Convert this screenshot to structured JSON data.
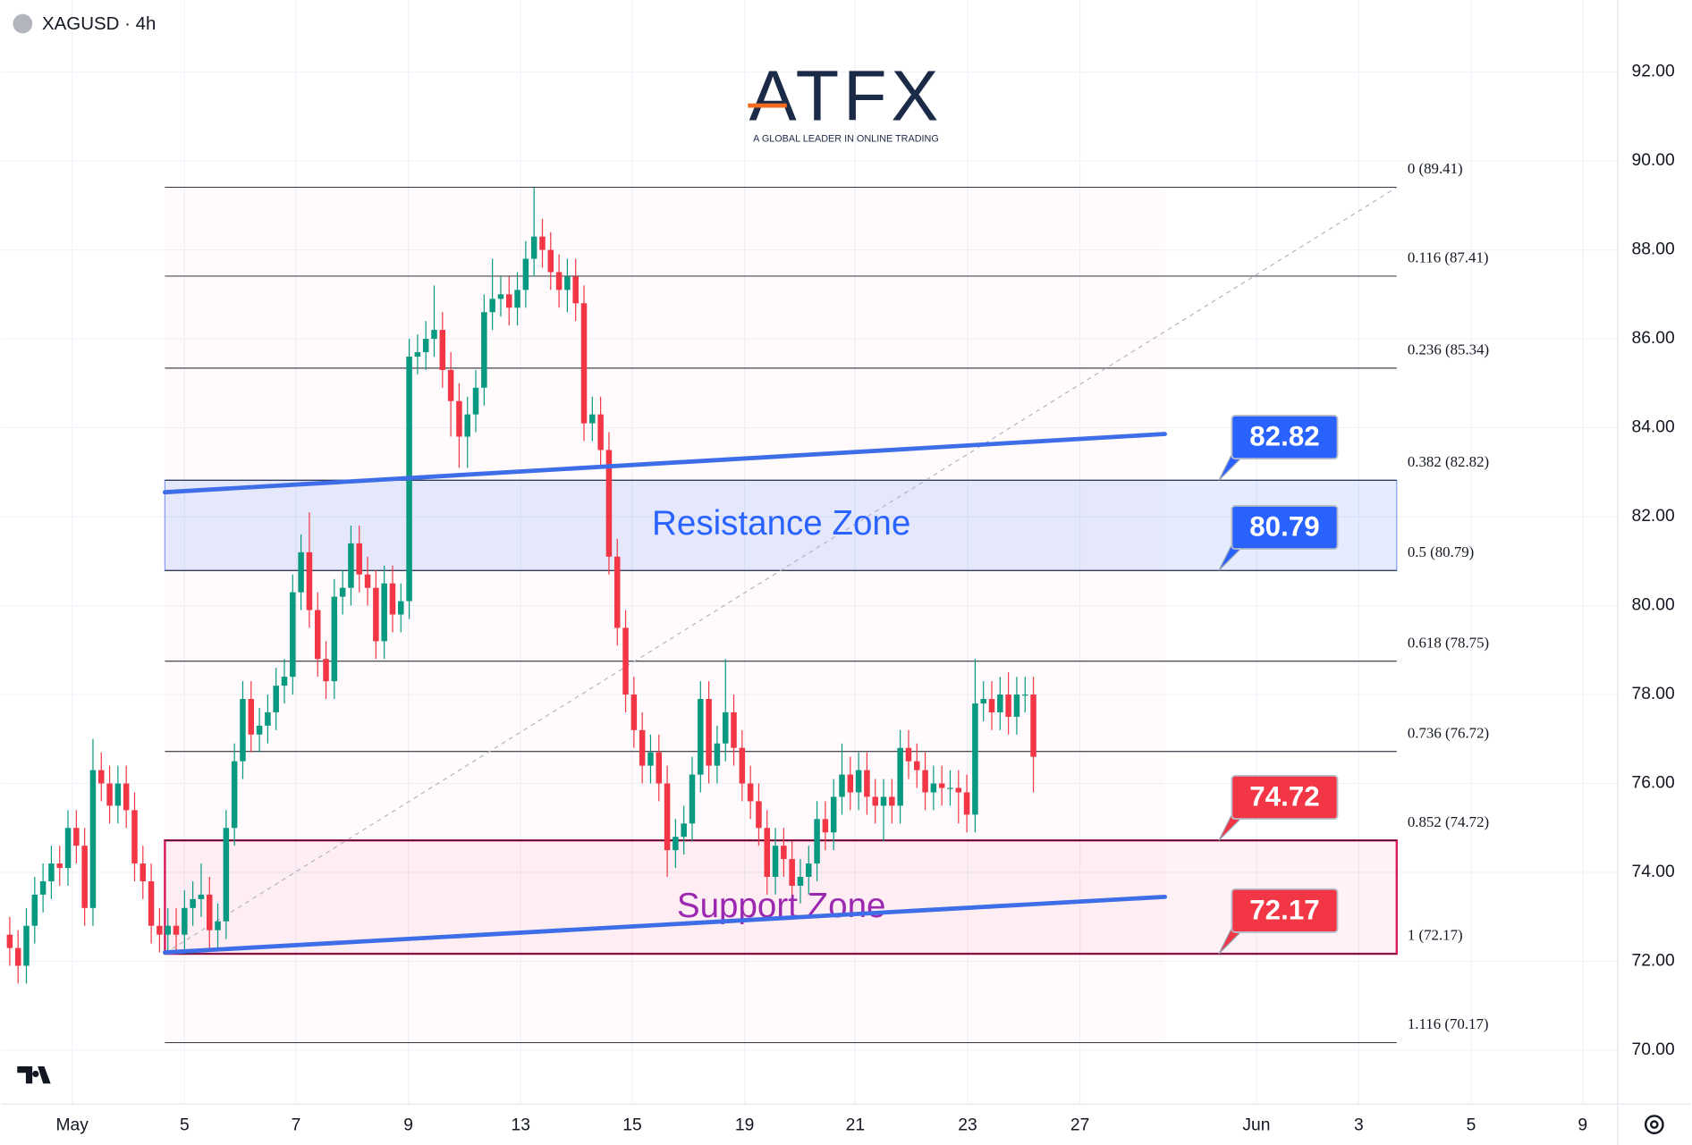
{
  "chart_data": {
    "type": "candlestick",
    "title": "XAGUSD · 4h",
    "x": [
      0,
      1,
      2,
      3,
      4,
      5,
      6,
      7,
      8,
      9,
      10,
      11,
      12,
      13,
      14,
      15,
      16,
      17,
      18,
      19,
      20,
      21,
      22,
      23,
      24,
      25,
      26,
      27,
      28,
      29,
      30,
      31,
      32,
      33,
      34,
      35,
      36,
      37,
      38,
      39,
      40,
      41,
      42,
      43,
      44,
      45,
      46,
      47,
      48,
      49,
      50,
      51,
      52,
      53,
      54,
      55,
      56,
      57,
      58,
      59,
      60,
      61,
      62,
      63,
      64,
      65,
      66,
      67,
      68,
      69,
      70,
      71,
      72,
      73,
      74,
      75,
      76,
      77,
      78,
      79,
      80,
      81,
      82,
      83,
      84,
      85,
      86,
      87,
      88,
      89,
      90,
      91,
      92,
      93,
      94,
      95,
      96,
      97,
      98,
      99,
      100,
      101,
      102,
      103,
      104,
      105,
      106,
      107,
      108,
      109,
      110,
      111,
      112,
      113,
      114,
      115,
      116,
      117,
      118,
      119,
      120,
      121,
      122,
      123
    ],
    "open": [
      72.6,
      72.3,
      71.9,
      72.8,
      73.5,
      73.8,
      74.2,
      74.1,
      75.0,
      74.6,
      73.2,
      76.3,
      76.0,
      75.5,
      76.0,
      75.4,
      74.2,
      73.8,
      72.8,
      72.6,
      72.8,
      72.6,
      73.2,
      73.4,
      73.5,
      72.7,
      72.9,
      75.0,
      76.5,
      77.9,
      77.1,
      77.3,
      77.6,
      78.2,
      78.4,
      80.3,
      81.2,
      79.9,
      78.8,
      78.3,
      80.2,
      80.4,
      81.4,
      80.7,
      80.4,
      79.2,
      80.5,
      79.8,
      80.1,
      85.6,
      85.7,
      86.0,
      86.2,
      85.3,
      84.6,
      83.8,
      84.3,
      84.9,
      86.6,
      86.9,
      87.0,
      86.7,
      87.1,
      87.8,
      88.3,
      88.0,
      87.5,
      87.1,
      87.4,
      86.8,
      84.1,
      84.3,
      83.5,
      81.1,
      79.5,
      78.0,
      77.2,
      76.4,
      76.7,
      76.0,
      74.5,
      74.8,
      75.1,
      76.2,
      77.9,
      76.4,
      76.9,
      77.6,
      76.8,
      76.0,
      75.6,
      75.0,
      73.9,
      74.6,
      74.3,
      73.7,
      73.9,
      74.2,
      75.2,
      74.9,
      75.7,
      76.2,
      75.8,
      76.3,
      75.7,
      75.5,
      75.7,
      75.5,
      76.8,
      76.5,
      76.3,
      75.8,
      76.0,
      75.9,
      75.9,
      75.8,
      75.3,
      77.8,
      77.9,
      77.6,
      78.0,
      77.5,
      78.0,
      78.0
    ],
    "high": [
      73.0,
      72.7,
      73.2,
      73.9,
      74.2,
      74.6,
      74.6,
      75.4,
      75.4,
      75.0,
      77.0,
      76.7,
      76.4,
      76.4,
      76.4,
      75.8,
      74.6,
      74.2,
      73.2,
      73.2,
      73.2,
      73.6,
      73.8,
      74.2,
      73.9,
      73.3,
      75.4,
      76.9,
      78.3,
      78.3,
      77.7,
      78.0,
      78.6,
      78.8,
      80.7,
      81.6,
      82.1,
      80.3,
      79.2,
      80.6,
      80.8,
      81.8,
      81.8,
      81.1,
      80.8,
      80.9,
      80.9,
      80.5,
      86.0,
      86.1,
      86.4,
      87.2,
      86.6,
      85.7,
      85.0,
      84.7,
      85.3,
      87.0,
      87.8,
      87.4,
      87.4,
      87.5,
      88.2,
      89.41,
      88.7,
      88.4,
      87.9,
      87.8,
      87.8,
      87.2,
      84.7,
      84.7,
      83.9,
      81.5,
      79.9,
      78.4,
      77.6,
      77.1,
      77.1,
      76.4,
      75.2,
      75.5,
      76.6,
      78.3,
      78.3,
      77.3,
      78.8,
      78.0,
      77.2,
      76.4,
      76.0,
      75.4,
      75.0,
      75.0,
      74.7,
      74.3,
      74.6,
      75.6,
      75.6,
      76.1,
      76.9,
      76.6,
      76.7,
      76.7,
      76.1,
      76.1,
      76.1,
      77.2,
      77.2,
      76.9,
      76.7,
      76.4,
      76.4,
      76.3,
      76.3,
      76.2,
      78.8,
      78.3,
      78.3,
      78.4,
      78.5,
      78.4,
      78.4,
      78.4
    ],
    "low": [
      71.9,
      71.5,
      71.5,
      72.4,
      73.1,
      73.4,
      73.7,
      73.7,
      74.2,
      72.8,
      72.8,
      75.6,
      75.1,
      75.1,
      75.0,
      73.8,
      73.4,
      72.4,
      72.2,
      72.2,
      72.2,
      72.2,
      72.8,
      73.0,
      72.3,
      72.3,
      72.5,
      74.6,
      76.1,
      76.7,
      76.7,
      76.9,
      77.2,
      77.8,
      78.0,
      79.9,
      79.5,
      78.4,
      77.9,
      77.9,
      79.8,
      80.0,
      80.3,
      80.0,
      78.8,
      78.8,
      79.4,
      79.4,
      79.7,
      85.2,
      85.3,
      85.6,
      84.9,
      83.8,
      83.1,
      83.1,
      83.9,
      84.5,
      86.2,
      86.5,
      86.3,
      86.3,
      86.7,
      87.4,
      87.6,
      87.1,
      86.7,
      86.6,
      86.4,
      83.7,
      83.7,
      83.1,
      80.7,
      79.1,
      77.6,
      76.8,
      76.0,
      76.0,
      75.6,
      73.9,
      74.1,
      74.4,
      74.7,
      75.8,
      76.0,
      76.0,
      76.5,
      76.4,
      75.6,
      75.2,
      74.6,
      73.5,
      73.5,
      73.9,
      73.3,
      73.3,
      73.5,
      73.8,
      74.5,
      74.5,
      75.3,
      75.4,
      75.4,
      75.3,
      75.1,
      74.7,
      75.1,
      75.1,
      76.1,
      75.9,
      75.4,
      75.4,
      75.5,
      75.5,
      75.1,
      74.9,
      74.9,
      77.4,
      77.2,
      77.2,
      77.1,
      77.1,
      77.6,
      75.8
    ],
    "close": [
      72.3,
      71.9,
      72.8,
      73.5,
      73.8,
      74.2,
      74.1,
      75.0,
      74.6,
      73.2,
      76.3,
      76.0,
      75.5,
      76.0,
      75.4,
      74.2,
      73.8,
      72.8,
      72.6,
      72.8,
      72.6,
      73.2,
      73.4,
      73.5,
      72.7,
      72.9,
      75.0,
      76.5,
      77.9,
      77.1,
      77.3,
      77.6,
      78.2,
      78.4,
      80.3,
      81.2,
      79.9,
      78.8,
      78.3,
      80.2,
      80.4,
      81.4,
      80.7,
      80.4,
      79.2,
      80.5,
      79.8,
      80.1,
      85.6,
      85.7,
      86.0,
      86.2,
      85.3,
      84.6,
      83.8,
      84.3,
      84.9,
      86.6,
      86.9,
      87.0,
      86.7,
      87.1,
      87.8,
      88.3,
      88.0,
      87.5,
      87.1,
      87.4,
      86.8,
      84.1,
      84.3,
      83.5,
      81.1,
      79.5,
      78.0,
      77.2,
      76.4,
      76.7,
      76.0,
      74.5,
      74.8,
      75.1,
      76.2,
      77.9,
      76.4,
      76.9,
      77.6,
      76.8,
      76.0,
      75.6,
      75.0,
      73.9,
      74.6,
      74.3,
      73.7,
      73.9,
      74.2,
      75.2,
      74.9,
      75.7,
      76.2,
      75.8,
      76.3,
      75.7,
      75.5,
      75.7,
      75.5,
      76.8,
      76.5,
      76.3,
      75.8,
      76.0,
      75.9,
      75.9,
      75.8,
      75.3,
      77.8,
      77.9,
      77.6,
      78.0,
      77.5,
      78.0,
      78.0,
      76.6
    ],
    "up_color": "#089981",
    "down_color": "#f23645",
    "xlim": [
      -1.04,
      193.2
    ],
    "xticks": [
      {
        "value": 7.5,
        "label": "May"
      },
      {
        "value": 21.0,
        "label": "5"
      },
      {
        "value": 34.4,
        "label": "7"
      },
      {
        "value": 47.9,
        "label": "9"
      },
      {
        "value": 61.4,
        "label": "13"
      },
      {
        "value": 74.8,
        "label": "15"
      },
      {
        "value": 88.3,
        "label": "19"
      },
      {
        "value": 101.6,
        "label": "21"
      },
      {
        "value": 115.1,
        "label": "23"
      },
      {
        "value": 128.6,
        "label": "27"
      },
      {
        "value": 149.8,
        "label": "Jun"
      },
      {
        "value": 162.1,
        "label": "3"
      },
      {
        "value": 175.6,
        "label": "5"
      },
      {
        "value": 189.0,
        "label": "9"
      }
    ],
    "ylim": [
      68.79,
      93.62
    ],
    "yticks": [
      {
        "value": 70,
        "label": "70.00"
      },
      {
        "value": 72,
        "label": "72.00"
      },
      {
        "value": 74,
        "label": "74.00"
      },
      {
        "value": 76,
        "label": "76.00"
      },
      {
        "value": 78,
        "label": "78.00"
      },
      {
        "value": 80,
        "label": "80.00"
      },
      {
        "value": 82,
        "label": "82.00"
      },
      {
        "value": 84,
        "label": "84.00"
      },
      {
        "value": 86,
        "label": "86.00"
      },
      {
        "value": 88,
        "label": "88.00"
      },
      {
        "value": 90,
        "label": "90.00"
      },
      {
        "value": 92,
        "label": "92.00"
      }
    ],
    "grid": true,
    "fib_levels": [
      {
        "price": 89.41,
        "label": "0 (89.41)"
      },
      {
        "price": 87.41,
        "label": "0.116 (87.41)"
      },
      {
        "price": 85.34,
        "label": "0.236 (85.34)"
      },
      {
        "price": 82.82,
        "label": "0.382 (82.82)"
      },
      {
        "price": 80.79,
        "label": "0.5 (80.79)"
      },
      {
        "price": 78.75,
        "label": "0.618 (78.75)"
      },
      {
        "price": 76.72,
        "label": "0.736 (76.72)"
      },
      {
        "price": 74.72,
        "label": "0.852 (74.72)"
      },
      {
        "price": 72.17,
        "label": "1 (72.17)"
      },
      {
        "price": 70.17,
        "label": "1.116 (70.17)"
      }
    ],
    "zones": [
      {
        "label": "Resistance Zone",
        "from": 80.79,
        "to": 82.82,
        "color": "#2962ff"
      },
      {
        "label": "Support Zone",
        "from": 72.17,
        "to": 74.72,
        "color": "#9c27b0"
      }
    ],
    "price_tags": [
      {
        "value": 82.82,
        "color": "#2962ff"
      },
      {
        "value": 80.79,
        "color": "#2962ff"
      },
      {
        "value": 74.72,
        "color": "#f23645"
      },
      {
        "value": 72.17,
        "color": "#f23645"
      }
    ],
    "trend_lines": [
      {
        "x": [
          18.64,
          138.8
        ],
        "y": [
          82.55,
          83.86
        ],
        "color": "#3d6ee8"
      },
      {
        "x": [
          18.64,
          138.8
        ],
        "y": [
          72.2,
          73.45
        ],
        "color": "#3d6ee8"
      }
    ]
  },
  "logo": {
    "text": "ATFX",
    "tagline": "A GLOBAL LEADER IN ONLINE TRADING"
  }
}
